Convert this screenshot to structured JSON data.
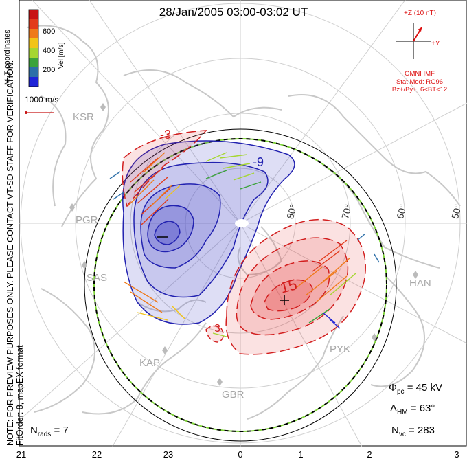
{
  "title": "28/Jan/2005 03:00-03:02 UT",
  "note_lines": [
    "NOTE: FOR PREVIEW PURPOSES ONLY. PLEASE CONTACT VT-SD STAFF FOR VERIFICATION.",
    "FitOrder: 8, mapEX format"
  ],
  "coordinates": "MLT coordinates",
  "colorbar": {
    "label": "Vel [m/s]",
    "ticks": [
      "600",
      "400",
      "200"
    ],
    "colors": [
      "#1f24d8",
      "#2d6fa8",
      "#3ba33b",
      "#a5d631",
      "#f2c418",
      "#ef7a1a",
      "#e23b1c",
      "#c81414"
    ]
  },
  "reference_vector": "1000 m/s",
  "imf": {
    "z_label": "+Z (10 nT)",
    "y_label": "+Y",
    "source": "OMNI IMF",
    "model": "Stat Mod: RG96",
    "condition": "Bz+/By+, 6<BT<12"
  },
  "stats": {
    "phi_pc_label": "Φ",
    "phi_pc_sub": "pc",
    "phi_pc_value": "= 45 kV",
    "lambda_label": "Λ",
    "lambda_sub": "HM",
    "lambda_value": "= 63°",
    "nvc_label": "N",
    "nvc_sub": "vc",
    "nvc_value": "= 283",
    "nrads_label": "N",
    "nrads_sub": "rads",
    "nrads_value": "= 7"
  },
  "mlt_ticks": [
    "21",
    "22",
    "23",
    "0",
    "1",
    "2",
    "3"
  ],
  "latitudes": [
    "80°",
    "70°",
    "60°",
    "50°"
  ],
  "sites": [
    "KSR",
    "PGR",
    "SAS",
    "KAP",
    "GBR",
    "PYK",
    "HAN"
  ],
  "contour_labels": [
    "-9",
    "15",
    "-3",
    "3"
  ],
  "map_colors": {
    "negative_cell": "#4a4ac8",
    "positive_cell": "#e23030",
    "hm_boundary": "#000000",
    "hm_boundary_dash": "#7fd43a",
    "coastline": "#c8c8c8",
    "grid": "#cfcfcf"
  }
}
